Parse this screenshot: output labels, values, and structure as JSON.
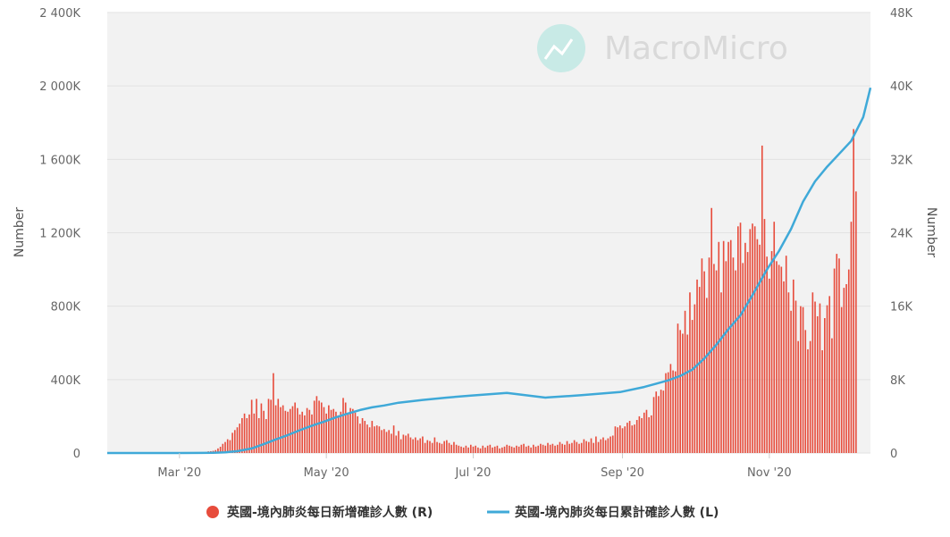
{
  "chart_data": {
    "type": "bar+line",
    "watermark": "MacroMicro",
    "y_left": {
      "label": "Number",
      "range": [
        0,
        2400000
      ],
      "ticks": [
        0,
        400000,
        800000,
        1200000,
        1600000,
        2000000,
        2400000
      ],
      "tick_labels": [
        "0",
        "400K",
        "800K",
        "1 200K",
        "1 600K",
        "2 000K",
        "2 400K"
      ]
    },
    "y_right": {
      "label": "Number",
      "range": [
        0,
        48000
      ],
      "ticks": [
        0,
        8000,
        16000,
        24000,
        32000,
        40000,
        48000
      ],
      "tick_labels": [
        "0",
        "8K",
        "16K",
        "24K",
        "32K",
        "40K",
        "48K"
      ]
    },
    "x_axis": {
      "start": "2020-01-31",
      "end": "2020-12-13",
      "ticks": [
        "2020-03-01",
        "2020-05-01",
        "2020-07-01",
        "2020-09-01",
        "2020-11-01"
      ],
      "tick_labels": [
        "Mar '20",
        "May '20",
        "Jul '20",
        "Sep '20",
        "Nov '20"
      ]
    },
    "grid": true,
    "legend_position": "bottom-center",
    "series": [
      {
        "name": "英國-境內肺炎每日新增確診人數 (R)",
        "type": "bar",
        "axis": "right",
        "color": "#e74c3c",
        "x_start": "2020-03-01",
        "values": [
          0,
          20,
          0,
          60,
          40,
          40,
          80,
          0,
          60,
          80,
          0,
          100,
          180,
          200,
          240,
          320,
          500,
          680,
          1000,
          1200,
          1500,
          1400,
          2200,
          2500,
          2800,
          3200,
          3800,
          4300,
          3800,
          4200,
          5800,
          4300,
          5900,
          3800,
          5400,
          4600,
          3700,
          5900,
          5800,
          8700,
          5200,
          5900,
          5000,
          5200,
          4600,
          4500,
          4800,
          5100,
          5500,
          4900,
          4200,
          4500,
          4100,
          4900,
          4700,
          4200,
          5700,
          6200,
          5700,
          5500,
          5000,
          4300,
          5200,
          4700,
          4800,
          4500,
          4100,
          4500,
          6000,
          5500,
          4300,
          4900,
          4800,
          4400,
          4000,
          3200,
          3800,
          3500,
          3100,
          2800,
          3500,
          2900,
          3000,
          2900,
          2500,
          2600,
          2300,
          2500,
          2100,
          3000,
          1900,
          2400,
          1500,
          2000,
          1900,
          2100,
          1700,
          1500,
          1700,
          1400,
          1600,
          1800,
          1100,
          1400,
          1300,
          1100,
          1700,
          1200,
          1100,
          1000,
          1300,
          1400,
          1100,
          900,
          1200,
          900,
          800,
          700,
          600,
          800,
          600,
          900,
          700,
          800,
          600,
          500,
          800,
          600,
          800,
          900,
          600,
          700,
          800,
          500,
          600,
          700,
          900,
          800,
          700,
          600,
          800,
          700,
          900,
          1000,
          700,
          800,
          600,
          900,
          700,
          800,
          1000,
          900,
          800,
          1100,
          900,
          1000,
          800,
          900,
          1200,
          1000,
          900,
          1300,
          1000,
          1100,
          1400,
          1200,
          1000,
          1100,
          1500,
          1300,
          1200,
          1600,
          1100,
          1800,
          1200,
          1500,
          1700,
          1400,
          1600,
          1800,
          1900,
          2900,
          2800,
          3000,
          2700,
          2900,
          3300,
          3500,
          3000,
          3100,
          3600,
          4000,
          3800,
          4400,
          4700,
          3900,
          4100,
          6100,
          6700,
          6200,
          6900,
          6800,
          8700,
          8800,
          9700,
          9000,
          8900,
          14100,
          13400,
          13000,
          15500,
          12900,
          17500,
          14500,
          16200,
          18900,
          18100,
          21200,
          19800,
          16900,
          21300,
          26700,
          20600,
          19900,
          23000,
          17500,
          23100,
          20900,
          23000,
          23200,
          21300,
          19900,
          24700,
          25100,
          20700,
          22900,
          21900,
          24400,
          25000,
          24700,
          23300,
          22700,
          33500,
          25500,
          21400,
          19000,
          22000,
          25200,
          20900,
          20500,
          20300,
          18700,
          21500,
          17500,
          15500,
          18900,
          16600,
          12200,
          16000,
          15900,
          13400,
          11300,
          12200,
          17500,
          16500,
          14900,
          16300,
          11200,
          14700,
          16100,
          17100,
          12500,
          20100,
          21700,
          21200,
          15900,
          18000,
          18400,
          20000,
          25200,
          35300,
          28500
        ]
      },
      {
        "name": "英國-境內肺炎每日累計確診人數 (L)",
        "type": "line",
        "axis": "left",
        "color": "#3fa9d8",
        "points": [
          [
            "2020-01-31",
            0
          ],
          [
            "2020-03-01",
            40
          ],
          [
            "2020-03-10",
            400
          ],
          [
            "2020-03-15",
            1400
          ],
          [
            "2020-03-20",
            4000
          ],
          [
            "2020-03-25",
            9500
          ],
          [
            "2020-03-31",
            25000
          ],
          [
            "2020-04-05",
            48000
          ],
          [
            "2020-04-10",
            74000
          ],
          [
            "2020-04-15",
            98000
          ],
          [
            "2020-04-20",
            124000
          ],
          [
            "2020-04-25",
            149000
          ],
          [
            "2020-04-30",
            171000
          ],
          [
            "2020-05-05",
            194000
          ],
          [
            "2020-05-10",
            215000
          ],
          [
            "2020-05-15",
            234000
          ],
          [
            "2020-05-20",
            249000
          ],
          [
            "2020-05-25",
            259000
          ],
          [
            "2020-05-31",
            274000
          ],
          [
            "2020-06-10",
            289000
          ],
          [
            "2020-06-20",
            302000
          ],
          [
            "2020-06-30",
            313000
          ],
          [
            "2020-07-15",
            327000
          ],
          [
            "2020-07-31",
            302000
          ],
          [
            "2020-08-01",
            303000
          ],
          [
            "2020-08-15",
            315000
          ],
          [
            "2020-08-31",
            332000
          ],
          [
            "2020-09-10",
            360000
          ],
          [
            "2020-09-15",
            378000
          ],
          [
            "2020-09-20",
            396000
          ],
          [
            "2020-09-25",
            420000
          ],
          [
            "2020-09-30",
            454000
          ],
          [
            "2020-10-05",
            515000
          ],
          [
            "2020-10-10",
            590000
          ],
          [
            "2020-10-15",
            675000
          ],
          [
            "2020-10-20",
            750000
          ],
          [
            "2020-10-25",
            860000
          ],
          [
            "2020-10-31",
            1000000
          ],
          [
            "2020-11-05",
            1100000
          ],
          [
            "2020-11-10",
            1220000
          ],
          [
            "2020-11-15",
            1370000
          ],
          [
            "2020-11-20",
            1480000
          ],
          [
            "2020-11-25",
            1560000
          ],
          [
            "2020-11-30",
            1630000
          ],
          [
            "2020-12-05",
            1700000
          ],
          [
            "2020-12-10",
            1830000
          ],
          [
            "2020-12-13",
            1990000
          ]
        ]
      }
    ]
  }
}
